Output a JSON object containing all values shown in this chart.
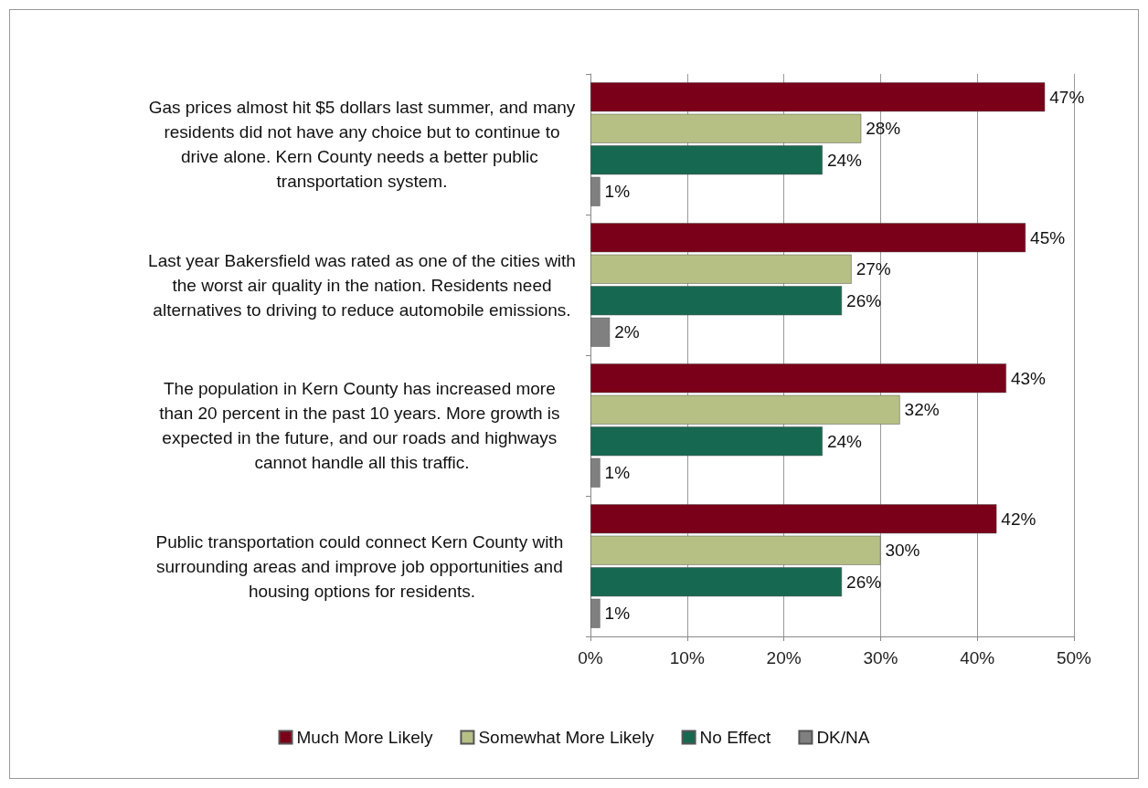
{
  "chart_data": {
    "type": "bar",
    "orientation": "horizontal",
    "categories": [
      "Gas prices almost hit $5 dollars last summer, and many residents did not have any choice but to continue to drive alone. Kern County needs a better public transportation system.",
      "Last year Bakersfield was rated as one of the cities with the worst air quality in the nation. Residents need alternatives to driving to reduce automobile emissions.",
      "The population in Kern County has increased more than 20 percent in the past 10 years. More growth is expected in the future, and our roads and highways cannot handle all this traffic.",
      "Public transportation could connect Kern County with surrounding areas and improve job opportunities and housing options for residents."
    ],
    "series": [
      {
        "name": "Much More Likely",
        "color": "#7a0019",
        "values": [
          47,
          45,
          43,
          42
        ],
        "value_labels": [
          "47%",
          "45%",
          "43%",
          "42%"
        ]
      },
      {
        "name": "Somewhat More Likely",
        "color": "#b7c084",
        "values": [
          28,
          27,
          32,
          30
        ],
        "value_labels": [
          "28%",
          "27%",
          "32%",
          "30%"
        ]
      },
      {
        "name": "No Effect",
        "color": "#176850",
        "values": [
          24,
          26,
          24,
          26
        ],
        "value_labels": [
          "24%",
          "26%",
          "24%",
          "26%"
        ]
      },
      {
        "name": "DK/NA",
        "color": "#808080",
        "values": [
          1,
          2,
          1,
          1
        ],
        "value_labels": [
          "1%",
          "2%",
          "1%",
          "1%"
        ]
      }
    ],
    "xlim": [
      0,
      50
    ],
    "xticks": [
      {
        "value": 0,
        "label": "0%"
      },
      {
        "value": 10,
        "label": "10%"
      },
      {
        "value": 20,
        "label": "20%"
      },
      {
        "value": 30,
        "label": "30%"
      },
      {
        "value": 40,
        "label": "40%"
      },
      {
        "value": 50,
        "label": "50%"
      }
    ],
    "grid": "x",
    "legend": "bottom"
  }
}
